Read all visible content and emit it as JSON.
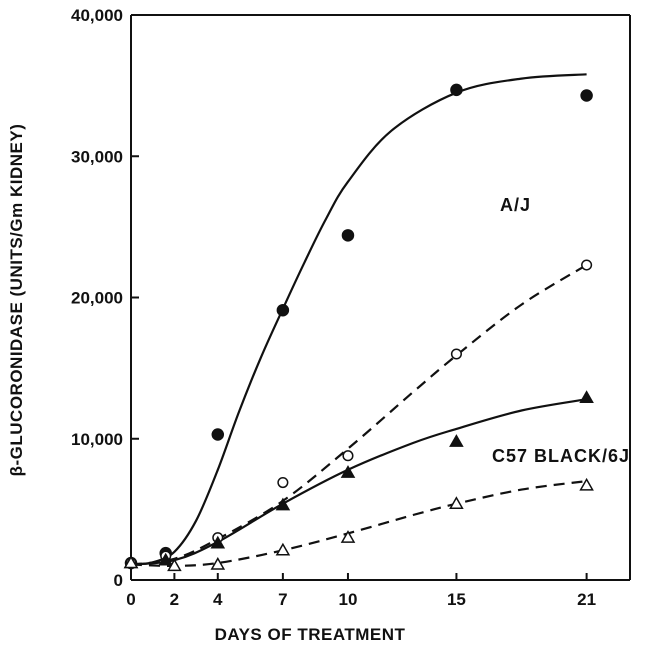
{
  "chart_data": {
    "type": "line",
    "title": "",
    "xlabel": "DAYS OF TREATMENT",
    "ylabel": "β-GLUCORONIDASE (UNITS/Gm KIDNEY)",
    "xlim": [
      0,
      23
    ],
    "ylim": [
      0,
      40000
    ],
    "x_ticks": [
      0,
      2,
      4,
      7,
      10,
      15,
      21
    ],
    "x_tick_labels": [
      "0",
      "2",
      "4",
      "7",
      "10",
      "15",
      "21"
    ],
    "y_ticks": [
      0,
      10000,
      20000,
      30000,
      40000
    ],
    "y_tick_labels": [
      "0",
      "10,000",
      "20,000",
      "30,000",
      "40,000"
    ],
    "grid": false,
    "annotations": [
      "A/J",
      "C57 BLACK/6J"
    ],
    "series": [
      {
        "marker": "filled-circle",
        "line": "solid",
        "points": [
          [
            0,
            1200
          ],
          [
            1.6,
            1900
          ],
          [
            4,
            10300
          ],
          [
            7,
            19100
          ],
          [
            10,
            24400
          ],
          [
            15,
            34700
          ],
          [
            21,
            34300
          ]
        ],
        "curve": [
          [
            0,
            1100
          ],
          [
            1,
            1250
          ],
          [
            2,
            2000
          ],
          [
            3,
            4200
          ],
          [
            4,
            7800
          ],
          [
            5,
            12000
          ],
          [
            6,
            15800
          ],
          [
            7,
            19200
          ],
          [
            8,
            22500
          ],
          [
            9,
            25600
          ],
          [
            10,
            28200
          ],
          [
            12,
            31800
          ],
          [
            15,
            34500
          ],
          [
            18,
            35500
          ],
          [
            21,
            35800
          ]
        ]
      },
      {
        "marker": "open-circle",
        "line": "dashed",
        "points": [
          [
            0,
            1200
          ],
          [
            1.6,
            1700
          ],
          [
            4,
            3000
          ],
          [
            7,
            6900
          ],
          [
            10,
            8800
          ],
          [
            15,
            16000
          ],
          [
            21,
            22300
          ]
        ],
        "curve": [
          [
            0,
            1100
          ],
          [
            2,
            1500
          ],
          [
            4,
            2900
          ],
          [
            7,
            5600
          ],
          [
            10,
            9300
          ],
          [
            13,
            13300
          ],
          [
            15,
            15900
          ],
          [
            18,
            19500
          ],
          [
            21,
            22300
          ]
        ]
      },
      {
        "marker": "filled-triangle",
        "line": "solid",
        "points": [
          [
            0,
            1200
          ],
          [
            1.6,
            1400
          ],
          [
            4,
            2600
          ],
          [
            7,
            5300
          ],
          [
            10,
            7600
          ],
          [
            15,
            9800
          ],
          [
            21,
            12900
          ]
        ],
        "curve": [
          [
            0,
            1100
          ],
          [
            2,
            1400
          ],
          [
            4,
            2700
          ],
          [
            7,
            5400
          ],
          [
            10,
            7800
          ],
          [
            13,
            9700
          ],
          [
            15,
            10700
          ],
          [
            18,
            12000
          ],
          [
            21,
            12800
          ]
        ]
      },
      {
        "marker": "open-triangle",
        "line": "dashed",
        "points": [
          [
            0,
            1200
          ],
          [
            2,
            1000
          ],
          [
            4,
            1100
          ],
          [
            7,
            2100
          ],
          [
            10,
            3000
          ],
          [
            15,
            5400
          ],
          [
            21,
            6700
          ]
        ],
        "curve": [
          [
            0,
            1100
          ],
          [
            2,
            1000
          ],
          [
            4,
            1200
          ],
          [
            7,
            2100
          ],
          [
            10,
            3300
          ],
          [
            13,
            4600
          ],
          [
            15,
            5400
          ],
          [
            18,
            6400
          ],
          [
            21,
            7000
          ]
        ]
      }
    ]
  }
}
